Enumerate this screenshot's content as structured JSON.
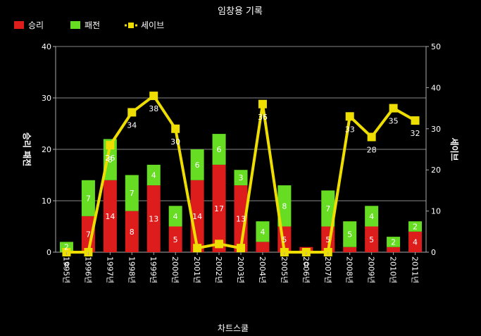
{
  "chart_data": {
    "type": "bar",
    "title": "임창용 기록",
    "xlabel": "차트스쿨",
    "ylabel_left": "승리 패전",
    "ylabel_right": "세이브",
    "ylim_left": [
      0,
      40
    ],
    "ylim_right": [
      0,
      50
    ],
    "yticks_left": [
      "0",
      "10",
      "20",
      "30",
      "40"
    ],
    "yticks_right": [
      "0",
      "10",
      "20",
      "30",
      "40",
      "50"
    ],
    "grid": true,
    "legend_position": "top-left",
    "categories": [
      "1995년",
      "1996년",
      "1997년",
      "1998년",
      "1999년",
      "2000년",
      "2001년",
      "2002년",
      "2003년",
      "2004년",
      "2005년",
      "2006년",
      "2007년",
      "2008년",
      "2009년",
      "2010년",
      "2011년"
    ],
    "series": [
      {
        "name": "승리",
        "kind": "bar",
        "color": "#dd1c1c",
        "axis": "left",
        "values": [
          0,
          7,
          14,
          8,
          13,
          5,
          14,
          17,
          13,
          2,
          5,
          1,
          5,
          1,
          5,
          1,
          4
        ],
        "labels": [
          "",
          "7",
          "14",
          "8",
          "13",
          "5",
          "14",
          "17",
          "13",
          "",
          "5",
          "",
          "5",
          "",
          "5",
          "",
          "4"
        ]
      },
      {
        "name": "패전",
        "kind": "bar",
        "color": "#66dd22",
        "axis": "left",
        "values": [
          2,
          7,
          8,
          7,
          4,
          4,
          6,
          6,
          3,
          4,
          8,
          0,
          7,
          5,
          4,
          2,
          2
        ],
        "labels": [
          "2",
          "7",
          "8",
          "7",
          "4",
          "4",
          "6",
          "6",
          "3",
          "4",
          "8",
          "",
          "7",
          "5",
          "4",
          "2",
          "2"
        ]
      },
      {
        "name": "세이브",
        "kind": "line",
        "color": "#eedd00",
        "axis": "right",
        "values": [
          0,
          0,
          26,
          34,
          38,
          30,
          1,
          2,
          1,
          36,
          0,
          0,
          0,
          33,
          28,
          35,
          32
        ],
        "labels": [
          "0",
          "",
          "26",
          "34",
          "38",
          "30",
          "",
          "",
          "",
          "36",
          "",
          "0",
          "",
          "33",
          "28",
          "35",
          "32"
        ]
      }
    ]
  }
}
